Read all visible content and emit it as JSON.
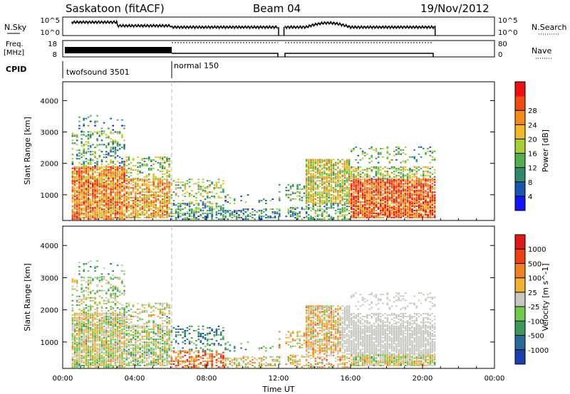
{
  "header": {
    "station": "Saskatoon (fitACF)",
    "beam": "Beam 04",
    "date": "19/Nov/2012"
  },
  "chart_data": [
    {
      "type": "line",
      "name": "sky-search-panel",
      "left_label": "N.Sky",
      "right_label": "N.Search",
      "left_ticks": [
        "10^5",
        "10^0"
      ],
      "right_ticks": [
        "10^5",
        "10^0"
      ],
      "x_ticks": [
        "00:00",
        "04:00",
        "08:00",
        "12:00",
        "16:00",
        "20:00",
        "00:00"
      ],
      "xlim_hours": [
        0,
        24
      ],
      "data_window_hours": [
        0.5,
        20.7
      ],
      "gap_hours": [
        12.0,
        12.3
      ]
    },
    {
      "type": "line",
      "name": "freq-nave-panel",
      "left_label_top": "Freq.",
      "left_label_bottom": "[MHz]",
      "right_label": "Nave",
      "left_ticks": [
        "18",
        "8"
      ],
      "right_ticks": [
        "80",
        "0"
      ],
      "x_ticks": [
        "00:00",
        "04:00",
        "08:00",
        "12:00",
        "16:00",
        "20:00",
        "00:00"
      ]
    },
    {
      "type": "table",
      "name": "cpid",
      "label": "CPID",
      "segments": [
        {
          "name": "twofsound 3501",
          "start_hour": 0.5,
          "end_hour": 6.0
        },
        {
          "name": "normal 150",
          "start_hour": 6.0,
          "end_hour": 20.7
        }
      ]
    },
    {
      "type": "heatmap",
      "name": "power",
      "ylabel": "Slant Range [km]",
      "ylim": [
        180,
        4600
      ],
      "yticks": [
        1000,
        2000,
        3000,
        4000
      ],
      "colorbar_label": "Power [dB]",
      "colorbar_ticks": [
        "4",
        "8",
        "12",
        "16",
        "20",
        "24",
        "28"
      ],
      "colorbar_colors": [
        "#1414ff",
        "#1a54b4",
        "#2e8a6e",
        "#52b04c",
        "#a6cf34",
        "#f2b82a",
        "#f58c1a",
        "#f24a12",
        "#ee1010"
      ],
      "x_ticks": [
        "00:00",
        "04:00",
        "08:00",
        "12:00",
        "16:00",
        "20:00",
        "00:00"
      ]
    },
    {
      "type": "heatmap",
      "name": "velocity",
      "ylabel": "Slant Range [km]",
      "ylim": [
        180,
        4600
      ],
      "yticks": [
        1000,
        2000,
        3000,
        4000
      ],
      "colorbar_label": "Velocity [m s^-1]",
      "colorbar_ticks": [
        "1000",
        "500",
        "100",
        "25",
        "-25",
        "-100",
        "-500",
        "-1000"
      ],
      "colorbar_colors": [
        "#1a3fb0",
        "#2a6a9a",
        "#3a9a5a",
        "#70c84a",
        "#c8c8c0",
        "#f0b030",
        "#f08020",
        "#ee4010",
        "#e01818"
      ],
      "x_ticks": [
        "00:00",
        "04:00",
        "08:00",
        "12:00",
        "16:00",
        "20:00",
        "00:00"
      ],
      "xlabel": "Time UT"
    }
  ]
}
